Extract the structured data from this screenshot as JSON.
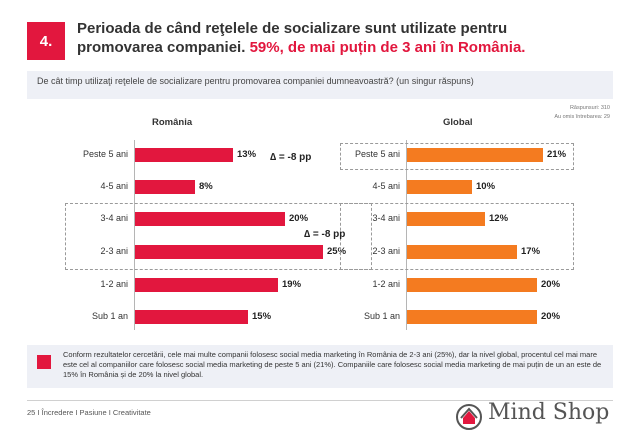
{
  "slide": {
    "number": "4.",
    "title_part1": "Perioada de când reţelele de socializare sunt utilizate pentru promovarea companiei. ",
    "title_highlight": "59%, de mai puțin de 3 ani în România.",
    "question": "De cât timp utilizaţi reţelele de socializare pentru promovarea companiei dumneavoastră? (un singur răspuns)",
    "meta_line1": "Răspunsuri: 310",
    "meta_line2": "Au omis întrebarea: 29"
  },
  "chart_data": [
    {
      "type": "bar",
      "orientation": "horizontal",
      "title": "România",
      "categories": [
        "Peste 5 ani",
        "4-5 ani",
        "3-4 ani",
        "2-3 ani",
        "1-2 ani",
        "Sub 1 an"
      ],
      "values": [
        13,
        8,
        20,
        25,
        19,
        15
      ],
      "value_labels": [
        "13%",
        "8%",
        "20%",
        "25%",
        "19%",
        "15%"
      ],
      "unit": "%",
      "xlim": [
        0,
        25
      ],
      "color": "#e2173e",
      "annotations": [
        "∆ = -8 pp",
        "∆ = -8 pp"
      ]
    },
    {
      "type": "bar",
      "orientation": "horizontal",
      "title": "Global",
      "categories": [
        "Peste 5 ani",
        "4-5 ani",
        "3-4 ani",
        "2-3 ani",
        "1-2 ani",
        "Sub 1 an"
      ],
      "values": [
        21,
        10,
        12,
        17,
        20,
        20
      ],
      "value_labels": [
        "21%",
        "10%",
        "12%",
        "17%",
        "20%",
        "20%"
      ],
      "unit": "%",
      "xlim": [
        0,
        25
      ],
      "color": "#f47b20"
    }
  ],
  "conclusion": "Conform rezultatelor cercetării, cele mai multe companii folosesc social media marketing în România de 2-3 ani (25%), dar la nivel global, procentul cel mai mare este cel al companiilor care folosesc social media marketing de peste 5 ani (21%). Companiile care folosesc social media marketing de mai puțin de un an este de 15% în România și de 20% la nivel global.",
  "footer": {
    "page": "25",
    "tagline": "I Încredere I Pasiune I Creativitate"
  },
  "brand": {
    "name": "Mind Shop",
    "accent": "#e2173e",
    "secondary": "#f47b20"
  }
}
